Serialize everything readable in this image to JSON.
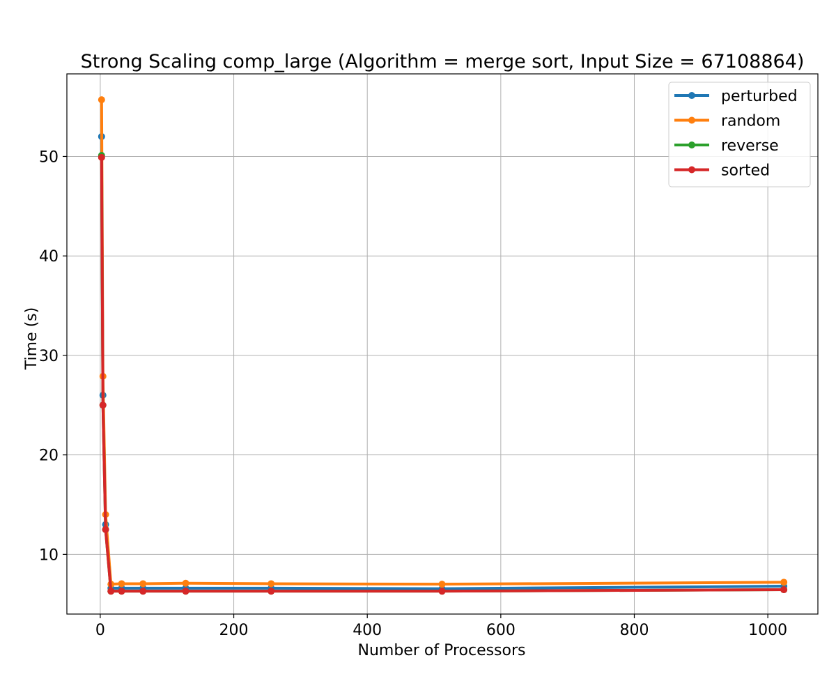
{
  "chart_data": {
    "type": "line",
    "title": "Strong Scaling comp_large (Algorithm = merge sort, Input Size = 67108864)",
    "xlabel": "Number of Processors",
    "ylabel": "Time (s)",
    "xlim": [
      -50,
      1075
    ],
    "ylim": [
      4,
      58.3
    ],
    "xticks": [
      0,
      200,
      400,
      600,
      800,
      1000
    ],
    "yticks": [
      10,
      20,
      30,
      40,
      50
    ],
    "grid": true,
    "legend_position": "top-right",
    "x": [
      2,
      4,
      8,
      16,
      32,
      64,
      128,
      256,
      512,
      1024
    ],
    "series": [
      {
        "name": "perturbed",
        "color": "#1f77b4",
        "values": [
          52.0,
          26.0,
          13.0,
          6.6,
          6.6,
          6.6,
          6.6,
          6.6,
          6.55,
          6.8
        ]
      },
      {
        "name": "random",
        "color": "#ff7f0e",
        "values": [
          55.7,
          27.9,
          14.0,
          7.0,
          7.05,
          7.05,
          7.1,
          7.05,
          7.0,
          7.2
        ]
      },
      {
        "name": "reverse",
        "color": "#2ca02c",
        "values": [
          50.1,
          25.0,
          12.5,
          6.3,
          6.3,
          6.3,
          6.3,
          6.3,
          6.3,
          6.45
        ]
      },
      {
        "name": "sorted",
        "color": "#d62728",
        "values": [
          49.9,
          25.0,
          12.5,
          6.3,
          6.3,
          6.3,
          6.3,
          6.3,
          6.3,
          6.45
        ]
      }
    ]
  }
}
